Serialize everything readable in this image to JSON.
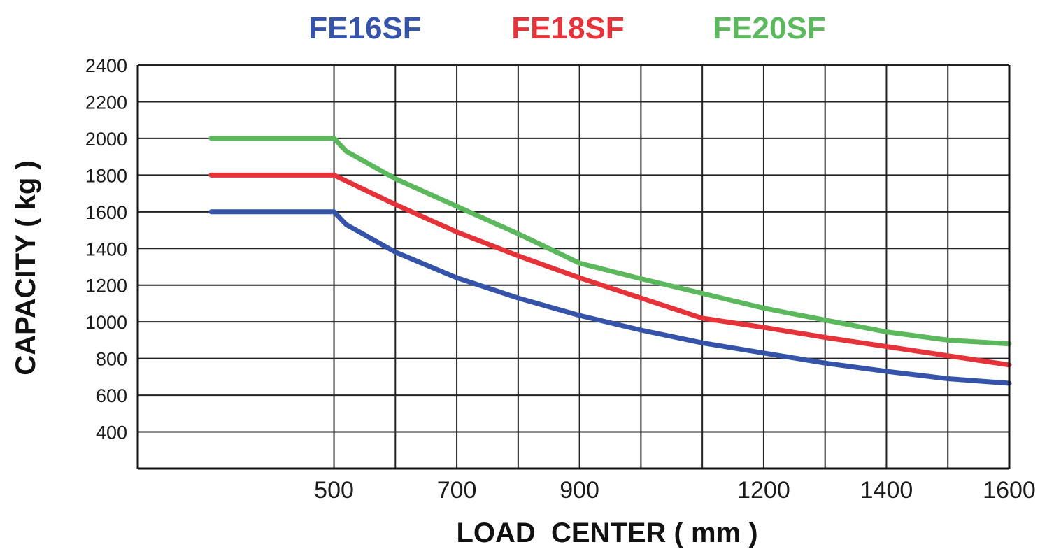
{
  "chart_data": {
    "type": "line",
    "xlabel": "LOAD  CENTER ( mm )",
    "ylabel": "CAPACITY ( kg )",
    "xlim": [
      300,
      1600
    ],
    "ylim": [
      200,
      2400
    ],
    "x_ticks": [
      500,
      700,
      900,
      1200,
      1400,
      1600
    ],
    "x_grid": [
      500,
      600,
      700,
      800,
      900,
      1000,
      1100,
      1200,
      1300,
      1400,
      1500,
      1600
    ],
    "y_ticks": [
      400,
      600,
      800,
      1000,
      1200,
      1400,
      1600,
      1800,
      2000,
      2200,
      2400
    ],
    "grid": true,
    "legend_position": "top-center",
    "series": [
      {
        "name": "FE16SF",
        "color": "#3553a8",
        "x": [
          300,
          500,
          520,
          600,
          700,
          800,
          900,
          1000,
          1100,
          1200,
          1300,
          1400,
          1500,
          1600
        ],
        "y": [
          1600,
          1600,
          1530,
          1380,
          1240,
          1130,
          1035,
          955,
          885,
          830,
          775,
          730,
          690,
          665
        ]
      },
      {
        "name": "FE18SF",
        "color": "#e63339",
        "x": [
          300,
          500,
          600,
          700,
          800,
          900,
          1000,
          1100,
          1200,
          1300,
          1400,
          1500,
          1600
        ],
        "y": [
          1800,
          1800,
          1640,
          1490,
          1360,
          1240,
          1130,
          1020,
          970,
          915,
          865,
          815,
          765
        ]
      },
      {
        "name": "FE20SF",
        "color": "#5cb85c",
        "x": [
          300,
          500,
          520,
          600,
          700,
          800,
          900,
          1000,
          1100,
          1200,
          1300,
          1400,
          1500,
          1600
        ],
        "y": [
          2000,
          2000,
          1930,
          1780,
          1630,
          1480,
          1320,
          1235,
          1155,
          1075,
          1010,
          945,
          900,
          880
        ]
      }
    ]
  }
}
